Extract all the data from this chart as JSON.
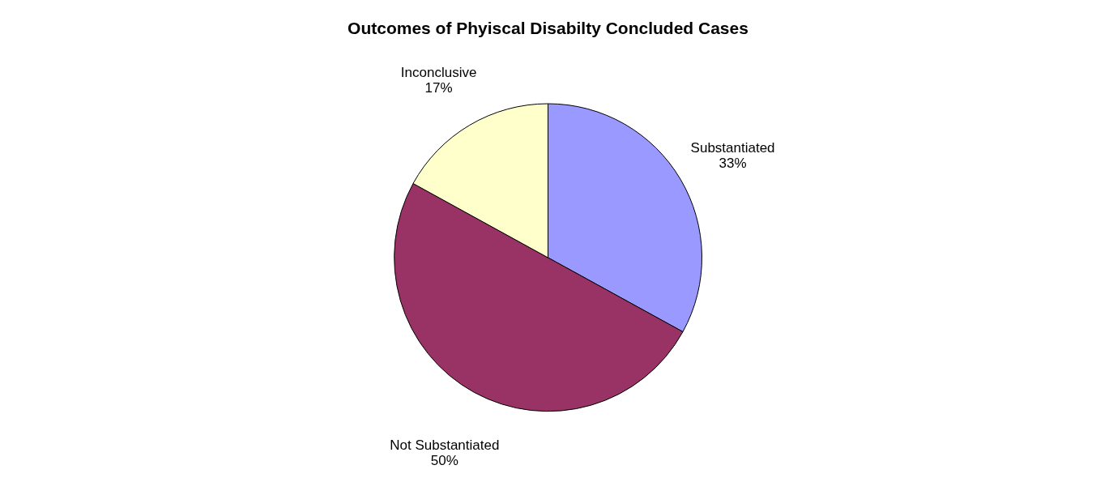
{
  "chart_data": {
    "type": "pie",
    "title": "Outcomes of Phyiscal Disabilty Concluded Cases",
    "categories": [
      "Substantiated",
      "Not Substantiated",
      "Inconclusive"
    ],
    "values": [
      33,
      50,
      17
    ],
    "value_labels": [
      "33%",
      "50%",
      "17%"
    ],
    "colors": [
      "#9999ff",
      "#993366",
      "#ffffcc"
    ],
    "legend": false
  }
}
